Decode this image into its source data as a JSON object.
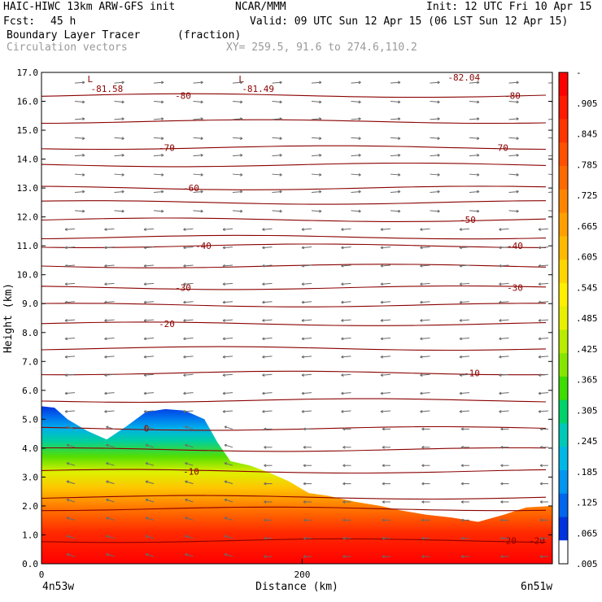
{
  "header": {
    "model": "HAIC-HIWC 13km ARW-GFS init",
    "org": "NCAR/MMM",
    "init": "Init: 12 UTC Fri 10 Apr 15",
    "fcst_label": "Fcst:",
    "fcst_value": "45 h",
    "valid": "Valid: 09 UTC Sun 12 Apr 15 (06 LST Sun 12 Apr 15)",
    "field": "Boundary Layer Tracer",
    "units": "(fraction)",
    "overlay": "Circulation vectors",
    "xy": "XY= 259.5, 91.6 to 274.6,110.2"
  },
  "chart_data": {
    "type": "heatmap",
    "ylabel": "Height (km)",
    "xlabel": "Distance (km)",
    "ylim": [
      0,
      17
    ],
    "xlim": [
      0,
      392
    ],
    "y_ticks": [
      "0.0",
      "1.0",
      "2.0",
      "3.0",
      "4.0",
      "5.0",
      "6.0",
      "7.0",
      "8.0",
      "9.0",
      "10.0",
      "11.0",
      "12.0",
      "13.0",
      "14.0",
      "15.0",
      "16.0",
      "17.0"
    ],
    "x_ticks": [
      {
        "value": 0,
        "label": "0"
      },
      {
        "value": 200,
        "label": "200"
      }
    ],
    "x_end_labels": {
      "left": "4n53w",
      "right": "6n51w"
    },
    "tracer_top_km": [
      [
        0,
        5.45
      ],
      [
        10,
        5.4
      ],
      [
        20,
        5.0
      ],
      [
        35,
        4.6
      ],
      [
        50,
        4.3
      ],
      [
        65,
        4.75
      ],
      [
        80,
        5.25
      ],
      [
        95,
        5.35
      ],
      [
        110,
        5.3
      ],
      [
        125,
        5.0
      ],
      [
        135,
        4.2
      ],
      [
        145,
        3.55
      ],
      [
        160,
        3.4
      ],
      [
        175,
        3.15
      ],
      [
        190,
        2.85
      ],
      [
        205,
        2.45
      ],
      [
        220,
        2.35
      ],
      [
        240,
        2.15
      ],
      [
        260,
        2.0
      ],
      [
        275,
        1.85
      ],
      [
        295,
        1.7
      ],
      [
        315,
        1.6
      ],
      [
        335,
        1.45
      ],
      [
        355,
        1.7
      ],
      [
        372,
        1.95
      ],
      [
        392,
        2.0
      ]
    ],
    "temperature_contours": [
      {
        "label": "0",
        "km": 4.68
      },
      {
        "label": "-10",
        "km": 6.6
      },
      {
        "label": "-20",
        "km": 8.3
      },
      {
        "label": "-30",
        "km": 9.55
      },
      {
        "label": "-40",
        "km": 11.0
      },
      {
        "label": "-50",
        "km": 11.9
      },
      {
        "label": "-60",
        "km": 13.0
      },
      {
        "label": "-70",
        "km": 14.4
      },
      {
        "label": "-80",
        "km": 16.2
      },
      {
        "label": "-10",
        "km": 3.2
      },
      {
        "label": "-20",
        "km": 0.8
      }
    ],
    "extrema": [
      {
        "mark": "L",
        "value": "-81.58",
        "x_km": 44,
        "y_km": 16.6
      },
      {
        "mark": "L",
        "value": "-81.49",
        "x_km": 160,
        "y_km": 16.6
      },
      {
        "mark": "",
        "value": "-82.04",
        "x_km": 318,
        "y_km": 17.0
      }
    ],
    "colorbar": {
      "labels": [
        "-",
        ".905",
        ".845",
        ".785",
        ".725",
        ".665",
        ".605",
        ".545",
        ".485",
        ".425",
        ".365",
        ".305",
        ".245",
        ".185",
        ".125",
        ".065",
        ".005"
      ],
      "colors": [
        "#ff0000",
        "#ff1a00",
        "#ff3500",
        "#ff5000",
        "#ff6a00",
        "#ff8500",
        "#ffa000",
        "#ffba00",
        "#ffd500",
        "#ffef00",
        "#e8f000",
        "#b8ec00",
        "#86e600",
        "#3fdc00",
        "#00d36a",
        "#00c9b8",
        "#00b8e6",
        "#0096f0",
        "#0066ee",
        "#0033e0",
        "#ffffff"
      ]
    }
  }
}
